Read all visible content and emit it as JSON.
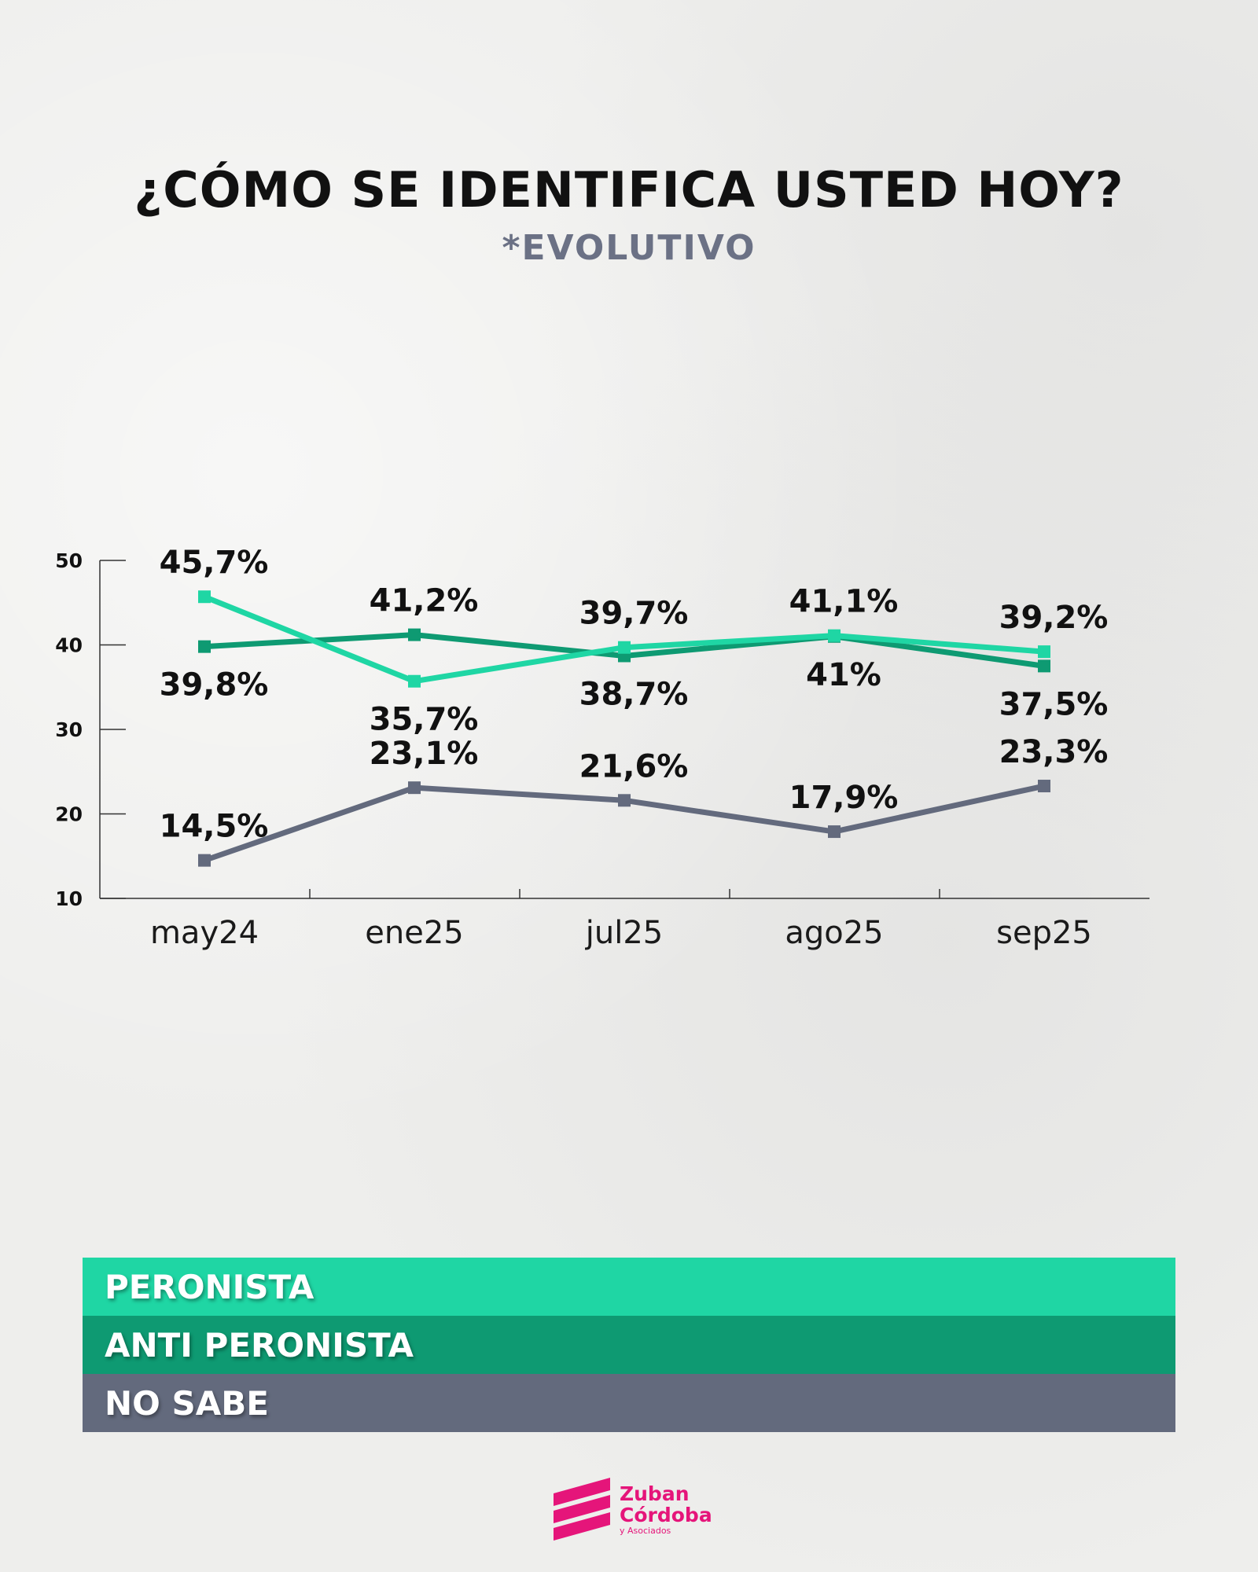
{
  "title": "¿CÓMO SE IDENTIFICA USTED HOY?",
  "subtitle": "*EVOLUTIVO",
  "chart_data": {
    "type": "line",
    "categories": [
      "may24",
      "ene25",
      "jul25",
      "ago25",
      "sep25"
    ],
    "ylim": [
      10,
      50
    ],
    "yticks": [
      10,
      20,
      30,
      40,
      50
    ],
    "ytick_labels": [
      "10",
      "20",
      "30",
      "40",
      "50"
    ],
    "grid": false,
    "legend_position": "bottom",
    "series": [
      {
        "name": "PERONISTA",
        "color": "#1fd6a4",
        "values": [
          45.7,
          35.7,
          39.7,
          41.1,
          39.2
        ],
        "labels": [
          "45,7%",
          "35,7%",
          "39,7%",
          "41,1%",
          "39,2%"
        ]
      },
      {
        "name": "ANTI PERONISTA",
        "color": "#0e9a72",
        "values": [
          39.8,
          41.2,
          38.7,
          41,
          37.5
        ],
        "labels": [
          "39,8%",
          "41,2%",
          "38,7%",
          "41%",
          "37,5%"
        ]
      },
      {
        "name": "NO SABE",
        "color": "#636a7d",
        "values": [
          14.5,
          23.1,
          21.6,
          17.9,
          23.3
        ],
        "labels": [
          "14,5%",
          "23,1%",
          "21,6%",
          "17,9%",
          "23,3%"
        ]
      }
    ]
  },
  "legend": [
    {
      "label": "PERONISTA",
      "color": "#1fd6a4"
    },
    {
      "label": "ANTI PERONISTA",
      "color": "#0e9a72"
    },
    {
      "label": "NO SABE",
      "color": "#636a7d"
    }
  ],
  "logo": {
    "line1": "Zuban",
    "line2": "Córdoba",
    "line3": "y Asociados",
    "color": "#e5157a",
    "icon": "zuban-cordoba-logo-icon"
  }
}
